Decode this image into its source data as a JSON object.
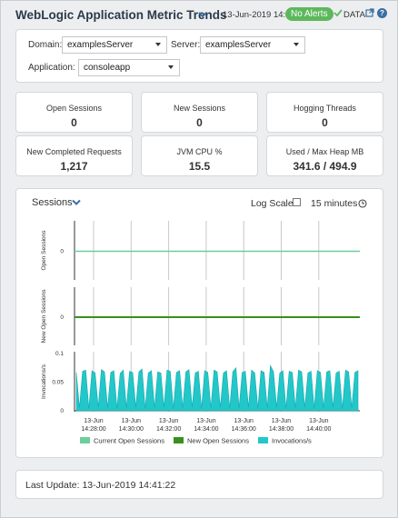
{
  "header": {
    "title": "WebLogic Application Metric Trends",
    "timestamp": "13-Jun-2019 14:41",
    "alert_badge": "No Alerts",
    "data_label": "DATA",
    "help_glyph": "?",
    "badge_color": "#5cb85c"
  },
  "filters": {
    "domain_label": "Domain:",
    "domain_value": "examplesServer",
    "server_label": "Server:",
    "server_value": "examplesServer",
    "application_label": "Application:",
    "application_value": "consoleapp"
  },
  "kpis": [
    {
      "label": "Open Sessions",
      "value": "0"
    },
    {
      "label": "New Sessions",
      "value": "0"
    },
    {
      "label": "Hogging Threads",
      "value": "0"
    },
    {
      "label": "New Completed Requests",
      "value": "1,217"
    },
    {
      "label": "JVM CPU %",
      "value": "15.5"
    },
    {
      "label": "Used / Max Heap MB",
      "value": "341.6 / 494.9"
    }
  ],
  "chart_panel": {
    "title": "Sessions",
    "log_scale_label": "Log Scale:",
    "log_scale_checked": false,
    "time_range": "15 minutes"
  },
  "chart_data": {
    "type": "line",
    "x_ticks": [
      {
        "date": "13-Jun",
        "time": "14:28:00"
      },
      {
        "date": "13-Jun",
        "time": "14:30:00"
      },
      {
        "date": "13-Jun",
        "time": "14:32:00"
      },
      {
        "date": "13-Jun",
        "time": "14:34:00"
      },
      {
        "date": "13-Jun",
        "time": "14:36:00"
      },
      {
        "date": "13-Jun",
        "time": "14:38:00"
      },
      {
        "date": "13-Jun",
        "time": "14:40:00"
      }
    ],
    "panes": [
      {
        "ylabel": "Open Sessions",
        "y_ticks": [
          "0"
        ],
        "series": "Current Open Sessions",
        "value": 0
      },
      {
        "ylabel": "New Open Sessions",
        "y_ticks": [
          "0"
        ],
        "series": "New Open Sessions",
        "value": 0
      },
      {
        "ylabel": "Invocations/s",
        "y_ticks": [
          "0.1",
          "0.05",
          "0"
        ],
        "ylim": [
          0,
          0.1
        ],
        "series": "Invocations/s",
        "values": [
          0.067,
          0.005,
          0.069,
          0.071,
          0.004,
          0.07,
          0.066,
          0.006,
          0.072,
          0.068,
          0.005,
          0.067,
          0.07,
          0.004,
          0.065,
          0.071,
          0.005,
          0.069,
          0.067,
          0.006,
          0.068,
          0.073,
          0.004,
          0.066,
          0.07,
          0.005,
          0.068,
          0.066,
          0.006,
          0.071,
          0.069,
          0.004,
          0.067,
          0.07,
          0.005,
          0.068,
          0.072,
          0.006,
          0.066,
          0.069,
          0.004,
          0.07,
          0.067,
          0.005,
          0.071,
          0.068,
          0.006,
          0.066,
          0.07,
          0.004,
          0.068,
          0.075,
          0.005,
          0.067,
          0.069,
          0.006,
          0.071,
          0.066,
          0.004,
          0.07,
          0.067,
          0.005,
          0.079,
          0.068,
          0.006,
          0.066,
          0.07,
          0.004,
          0.069,
          0.067,
          0.005,
          0.071,
          0.068,
          0.006,
          0.066,
          0.069,
          0.004,
          0.07,
          0.067,
          0.005,
          0.068,
          0.07,
          0.006,
          0.066,
          0.069,
          0.004,
          0.071,
          0.068,
          0.005,
          0.067,
          0.07
        ]
      }
    ],
    "legend": [
      {
        "name": "Current Open Sessions",
        "color": "#6ccf9a"
      },
      {
        "name": "New Open Sessions",
        "color": "#3a8f1e"
      },
      {
        "name": "Invocations/s",
        "color": "#22c7c9"
      }
    ]
  },
  "footer": {
    "last_update_label": "Last Update:",
    "last_update_value": "13-Jun-2019 14:41:22"
  }
}
